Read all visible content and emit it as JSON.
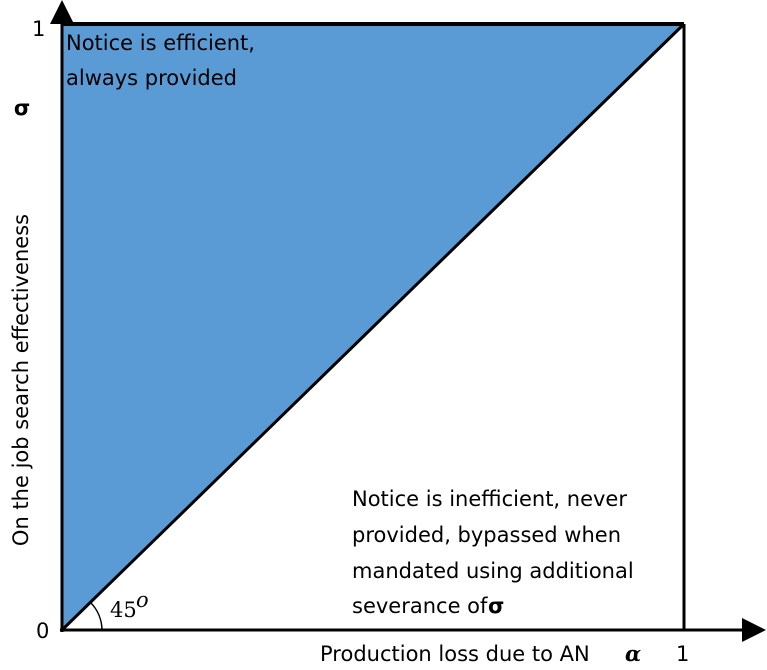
{
  "axes": {
    "y_label": "On the job search effectiveness",
    "y_symbol": "σ",
    "x_label": "Production loss due to AN",
    "x_symbol": "α",
    "origin_label": "0",
    "y_max_label": "1",
    "x_max_label": "1"
  },
  "regions": {
    "upper": {
      "lines": [
        "Notice is efficient,",
        "always provided"
      ]
    },
    "lower": {
      "lines": [
        "Notice is inefficient, never",
        "provided, bypassed when",
        "mandated using additional",
        "severance of"
      ],
      "symbol": "σ"
    }
  },
  "angle": {
    "value": "45",
    "unit": "o"
  }
}
